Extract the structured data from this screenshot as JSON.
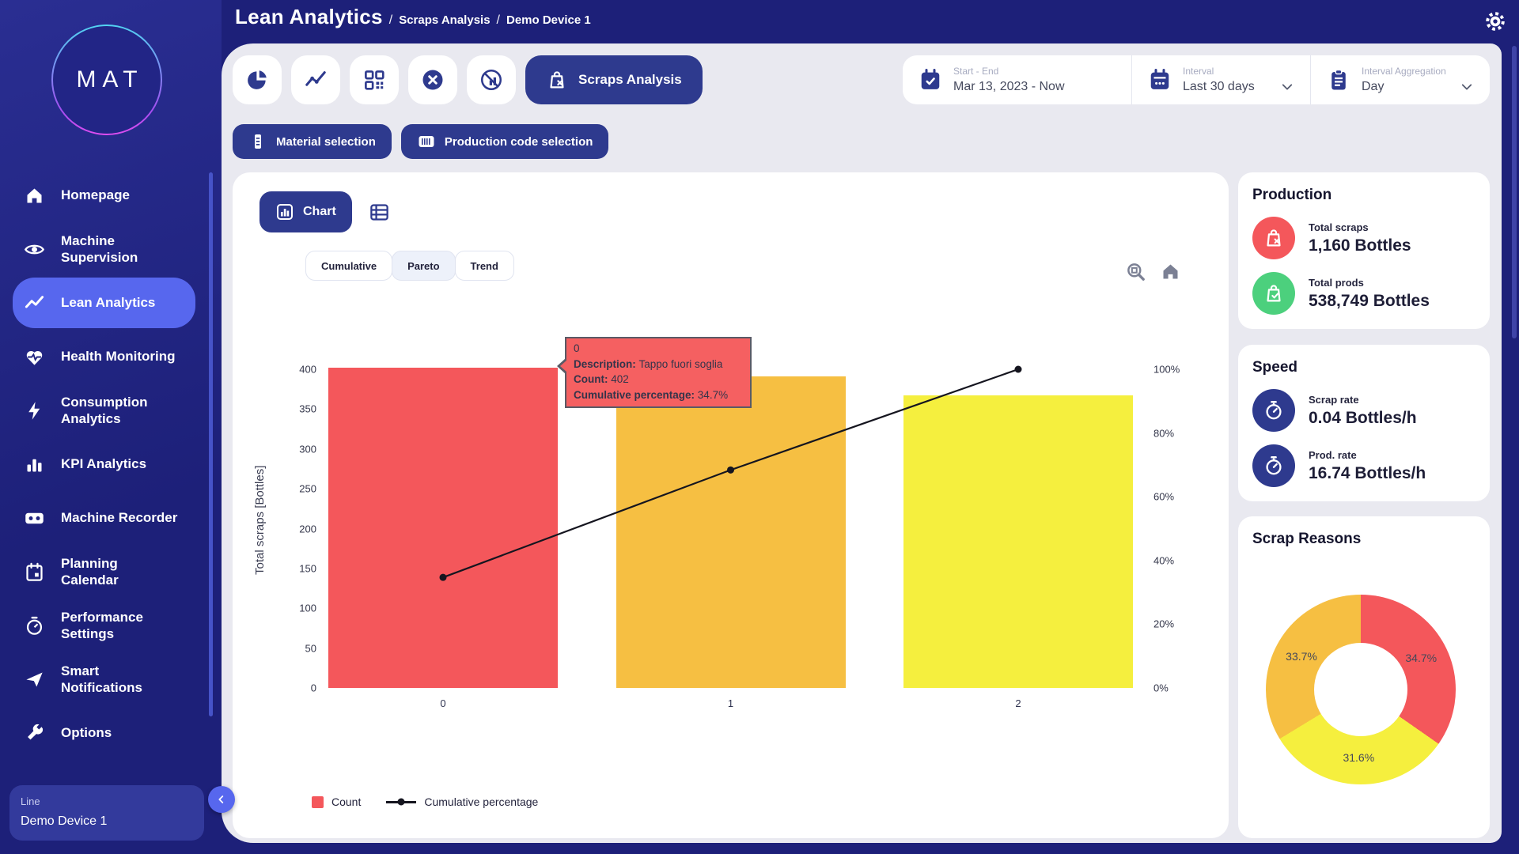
{
  "header": {
    "breadcrumb": {
      "title": "Lean Analytics",
      "separator": "/",
      "section": "Scraps Analysis",
      "device": "Demo Device 1"
    }
  },
  "sidebar": {
    "logo": "MAT",
    "items": [
      {
        "icon": "home-icon",
        "label": "Homepage"
      },
      {
        "icon": "eye-icon",
        "label": "Machine\nSupervision"
      },
      {
        "icon": "trend-icon",
        "label": "Lean Analytics",
        "active": true
      },
      {
        "icon": "heart-pulse-icon",
        "label": "Health Monitoring"
      },
      {
        "icon": "bolt-icon",
        "label": "Consumption\nAnalytics"
      },
      {
        "icon": "bar-chart-icon",
        "label": "KPI Analytics"
      },
      {
        "icon": "cassette-icon",
        "label": "Machine Recorder"
      },
      {
        "icon": "calendar-icon",
        "label": "Planning\nCalendar"
      },
      {
        "icon": "stopwatch-icon",
        "label": "Performance\nSettings"
      },
      {
        "icon": "send-icon",
        "label": "Smart\nNotifications"
      },
      {
        "icon": "wrench-icon",
        "label": "Options"
      }
    ],
    "device_panel": {
      "label": "Line",
      "value": "Demo Device 1"
    }
  },
  "toolbar": {
    "active_view_label": "Scraps Analysis",
    "filters": [
      {
        "label": "Start - End",
        "value": "Mar 13, 2023 - Now"
      },
      {
        "label": "Interval",
        "value": "Last 30 days"
      },
      {
        "label": "Interval Aggregation",
        "value": "Day"
      }
    ],
    "selection_buttons": [
      {
        "label": "Material selection"
      },
      {
        "label": "Production code selection"
      }
    ]
  },
  "chart_card": {
    "chart_button_label": "Chart",
    "tabs": [
      "Cumulative",
      "Pareto",
      "Trend"
    ],
    "active_tab": "Pareto",
    "tooltip": {
      "index": "0",
      "rows": [
        {
          "label": "Description",
          "value": "Tappo fuori soglia"
        },
        {
          "label": "Count",
          "value": "402"
        },
        {
          "label": "Cumulative percentage",
          "value": "34.7%"
        }
      ]
    },
    "legend": [
      {
        "label": "Count",
        "swatch": "#f4575b"
      },
      {
        "label": "Cumulative percentage"
      }
    ]
  },
  "chart_data": [
    {
      "type": "bar",
      "subtype": "pareto",
      "categories": [
        "0",
        "1",
        "2"
      ],
      "series": [
        {
          "name": "Count",
          "type": "bar",
          "values": [
            402,
            391,
            367
          ],
          "colors": [
            "#f4575b",
            "#f6bf42",
            "#f5ef3e"
          ]
        },
        {
          "name": "Cumulative percentage",
          "type": "line",
          "values": [
            34.7,
            68.4,
            100
          ],
          "color": "#15151f"
        }
      ],
      "ylabel": "Total scraps [Bottles]",
      "y_left": {
        "min": 0,
        "max": 400,
        "ticks": [
          0,
          50,
          100,
          150,
          200,
          250,
          300,
          350,
          400
        ]
      },
      "y_right": {
        "ticks": [
          "0%",
          "20%",
          "40%",
          "60%",
          "80%",
          "100%"
        ]
      },
      "grid": false,
      "legend_position": "bottom"
    },
    {
      "type": "pie",
      "subtype": "donut",
      "title": "Scrap Reasons",
      "slices": [
        {
          "label": "34.7%",
          "value": 34.7,
          "color": "#f4575b"
        },
        {
          "label": "31.6%",
          "value": 31.6,
          "color": "#f5ef3e"
        },
        {
          "label": "33.7%",
          "value": 33.7,
          "color": "#f6bf42"
        }
      ]
    }
  ],
  "right_panel": {
    "production": {
      "title": "Production",
      "stats": [
        {
          "label": "Total scraps",
          "value": "1,160 Bottles",
          "color": "#f4575b",
          "icon": "bag-x-icon"
        },
        {
          "label": "Total prods",
          "value": "538,749 Bottles",
          "color": "#4cd07d",
          "icon": "bag-check-icon"
        }
      ]
    },
    "speed": {
      "title": "Speed",
      "stats": [
        {
          "label": "Scrap rate",
          "value": "0.04 Bottles/h",
          "color": "#2e3a8e",
          "icon": "stopwatch-icon"
        },
        {
          "label": "Prod. rate",
          "value": "16.74 Bottles/h",
          "color": "#2e3a8e",
          "icon": "stopwatch-icon"
        }
      ]
    },
    "scrap_reasons": {
      "title": "Scrap Reasons"
    }
  }
}
